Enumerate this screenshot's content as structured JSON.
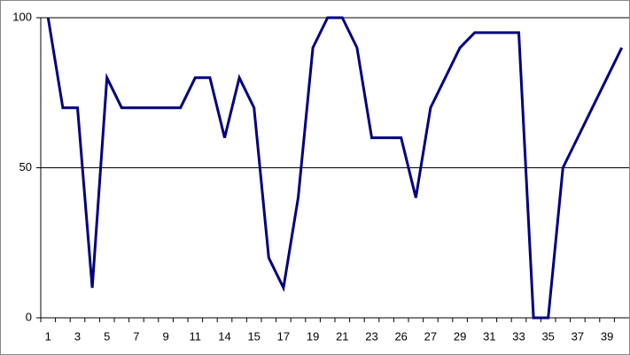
{
  "chart_data": {
    "type": "line",
    "categories": [
      "1",
      null,
      "3",
      null,
      "5",
      null,
      "7",
      null,
      "9",
      null,
      "11",
      null,
      "14",
      null,
      "15",
      null,
      "17",
      null,
      "19",
      null,
      "21",
      null,
      "23",
      null,
      "26",
      null,
      "27",
      null,
      "29",
      null,
      "31",
      null,
      "33",
      null,
      "35",
      null,
      "37",
      null,
      "39",
      null
    ],
    "values": [
      100,
      70,
      70,
      10,
      80,
      70,
      70,
      70,
      70,
      70,
      80,
      80,
      60,
      80,
      70,
      20,
      10,
      40,
      90,
      100,
      100,
      90,
      60,
      60,
      60,
      40,
      70,
      80,
      90,
      95,
      95,
      95,
      95,
      0,
      0,
      50,
      60,
      70,
      80,
      90
    ],
    "color": "#000080",
    "ylim": [
      0,
      100
    ],
    "yticks": [
      0,
      50,
      100
    ],
    "grid": true
  }
}
